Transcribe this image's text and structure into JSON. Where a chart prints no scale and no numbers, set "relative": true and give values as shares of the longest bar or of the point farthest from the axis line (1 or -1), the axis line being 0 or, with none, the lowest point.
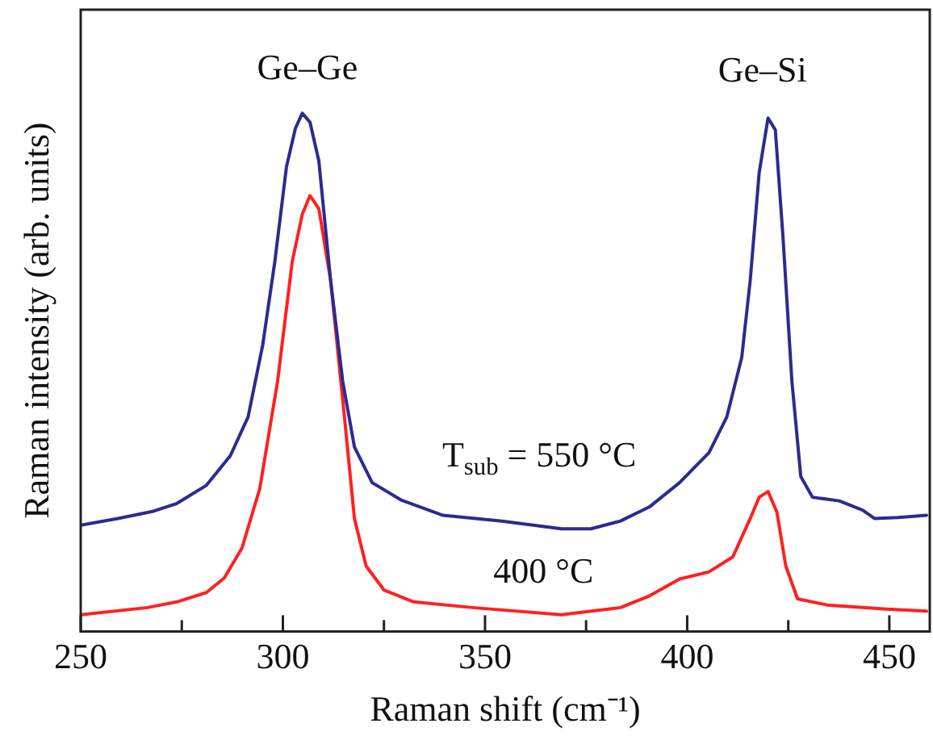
{
  "chart_data": {
    "type": "line",
    "relative": true,
    "xlabel": "Raman shift (cm⁻¹)",
    "ylabel": "Raman intensity (arb. units)",
    "xlim": [
      250,
      460
    ],
    "xticks": [
      250,
      {
        "value": 275,
        "label": null
      },
      300,
      {
        "value": 325,
        "label": null
      },
      350,
      {
        "value": 375,
        "label": null
      },
      400,
      {
        "value": 425,
        "label": null
      },
      450
    ],
    "tick_labels": "x",
    "series": [
      {
        "color": "#2b2b8f",
        "x": [
          250,
          259.2,
          268,
          273.8,
          281.1,
          287,
          291.4,
          295,
          298,
          300.9,
          303.1,
          304.8,
          306.7,
          308.9,
          311.8,
          314.8,
          317.7,
          322.1,
          329.4,
          339.6,
          354.2,
          368.9,
          376.2,
          383.5,
          390.8,
          398.1,
          405.4,
          409.8,
          413.5,
          415.6,
          417.8,
          420,
          421.8,
          423.7,
          425.9,
          428.1,
          431,
          437.6,
          443.4,
          446.3,
          452.2,
          459.2
        ],
        "values": [
          0.205,
          0.218,
          0.232,
          0.247,
          0.282,
          0.339,
          0.414,
          0.552,
          0.713,
          0.897,
          0.971,
          1,
          0.983,
          0.908,
          0.678,
          0.483,
          0.356,
          0.287,
          0.253,
          0.224,
          0.213,
          0.198,
          0.198,
          0.213,
          0.241,
          0.287,
          0.345,
          0.414,
          0.529,
          0.678,
          0.885,
          0.991,
          0.968,
          0.761,
          0.483,
          0.299,
          0.259,
          0.252,
          0.234,
          0.218,
          0.22,
          0.224
        ]
      },
      {
        "color": "#ff2020",
        "x": [
          250,
          266.5,
          273.8,
          281.1,
          285.5,
          289.9,
          294.3,
          298.7,
          302.3,
          304.8,
          306.7,
          308.9,
          311.8,
          314.8,
          317.7,
          320.6,
          325,
          332.3,
          346.9,
          368.9,
          383.5,
          390.8,
          398.1,
          405.4,
          411.3,
          415.6,
          417.8,
          420,
          422.2,
          424.4,
          427.3,
          434.6,
          449.3,
          459.2
        ],
        "values": [
          0.032,
          0.046,
          0.057,
          0.075,
          0.103,
          0.161,
          0.276,
          0.483,
          0.713,
          0.805,
          0.841,
          0.816,
          0.678,
          0.448,
          0.218,
          0.126,
          0.08,
          0.057,
          0.046,
          0.032,
          0.046,
          0.069,
          0.101,
          0.115,
          0.144,
          0.218,
          0.259,
          0.27,
          0.23,
          0.126,
          0.063,
          0.051,
          0.043,
          0.039
        ]
      }
    ],
    "annotations": [
      "Ge–Ge",
      "Ge–Si",
      "T$_{sub}$ = 550 °C",
      "400 °C"
    ]
  }
}
